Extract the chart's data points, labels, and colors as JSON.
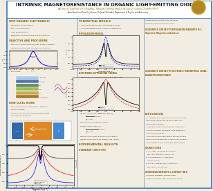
{
  "title": "INTRINSIC MAGNETORESISTANCE IN ORGANIC LIGHT-EMITTING DIODES",
  "subtitle": "AN INVESTIGATION OF ORGANIC MAGNETORESISTANCE IN OLEDs USING OOMMF/SPST",
  "authors": "James Booth and Franklin Johnson, Dr. Jason Richards | Department of Physics and Astronomy",
  "bg_color": "#f2ede2",
  "border_color": "#5a8abf",
  "header_bg": "#ffffff",
  "title_color": "#111111",
  "subtitle_color": "#9a7a1a",
  "section_title_color": "#8b6010",
  "body_color": "#222222",
  "col_divider_color": "#5a8abf",
  "plot_bg": "#f2ede2"
}
